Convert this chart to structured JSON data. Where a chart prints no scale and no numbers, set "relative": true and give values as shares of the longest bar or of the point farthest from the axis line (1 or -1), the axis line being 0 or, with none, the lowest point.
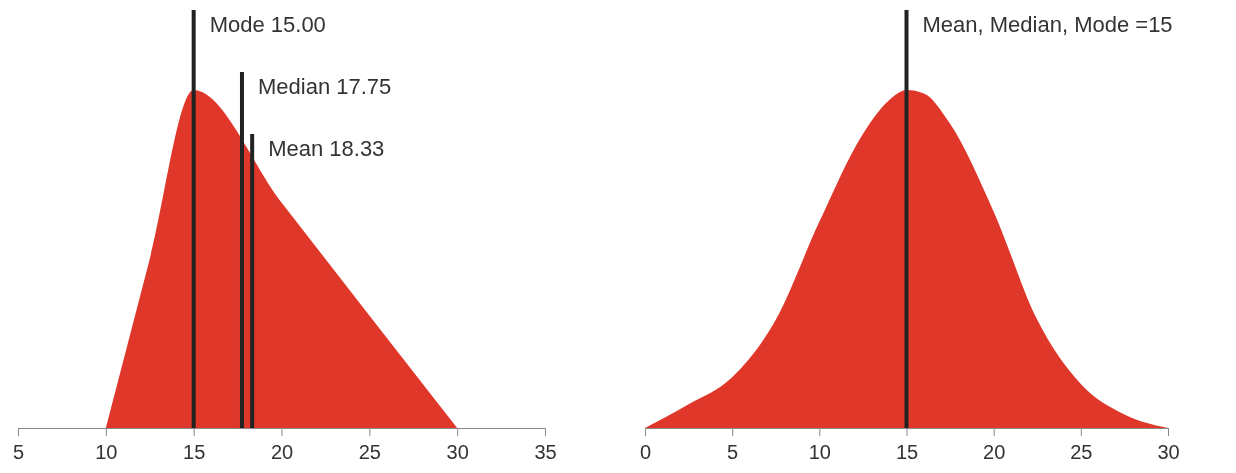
{
  "chart_data": [
    {
      "type": "area",
      "relative": true,
      "x": [
        10,
        12.5,
        15,
        20,
        25,
        30
      ],
      "series": [
        {
          "color": "#e0372b",
          "values": [
            0,
            0.5,
            1,
            0.667,
            0.333,
            0
          ]
        }
      ],
      "xlim": [
        5,
        35
      ],
      "xticks": [
        5,
        10,
        15,
        20,
        25,
        30,
        35
      ],
      "ref_lines": [
        {
          "axis": "x",
          "value": 15,
          "label": "Mode 15.00",
          "color": "#222222"
        },
        {
          "axis": "x",
          "value": 17.75,
          "label": "Median 17.75",
          "color": "#222222"
        },
        {
          "axis": "x",
          "value": 18.33,
          "label": "Mean 18.33",
          "color": "#222222"
        }
      ]
    },
    {
      "type": "area",
      "relative": true,
      "x": [
        0,
        2.5,
        5,
        7.5,
        10,
        12.5,
        14,
        15,
        16,
        17.5,
        20,
        22.5,
        25,
        27.5,
        30
      ],
      "series": [
        {
          "color": "#e0372b",
          "values": [
            0,
            0.07,
            0.15,
            0.32,
            0.61,
            0.87,
            0.97,
            1,
            0.99,
            0.9,
            0.64,
            0.32,
            0.13,
            0.04,
            0
          ]
        }
      ],
      "xlim": [
        0,
        30
      ],
      "xticks": [
        0,
        5,
        10,
        15,
        20,
        25,
        30
      ],
      "ref_lines": [
        {
          "axis": "x",
          "value": 15,
          "label": "Mean, Median, Mode =15",
          "color": "#222222"
        }
      ]
    }
  ]
}
